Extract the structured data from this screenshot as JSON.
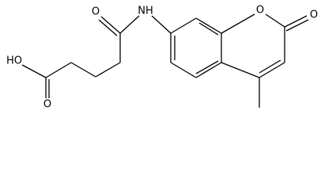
{
  "atoms": [
    {
      "label": "HO"
    },
    {
      "label": "O"
    },
    {
      "label": "O"
    },
    {
      "label": "NH"
    },
    {
      "label": "O"
    },
    {
      "label": "O"
    }
  ]
}
